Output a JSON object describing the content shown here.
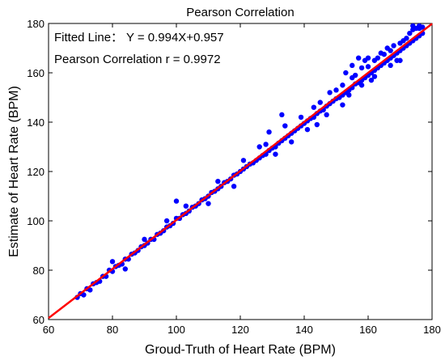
{
  "chart_data": {
    "type": "scatter",
    "title": "Pearson Correlation",
    "xlabel": "Groud-Truth of Heart Rate (BPM)",
    "ylabel": "Estimate of Heart Rate (BPM)",
    "xlim": [
      60,
      180
    ],
    "ylim": [
      60,
      180
    ],
    "xticks": [
      60,
      80,
      100,
      120,
      140,
      160,
      180
    ],
    "yticks": [
      60,
      80,
      100,
      120,
      140,
      160,
      180
    ],
    "grid": false,
    "annotations": [
      "Fitted Line： Y = 0.994X+0.957",
      "Pearson Correlation r = 0.9972"
    ],
    "fit_line": {
      "slope": 0.994,
      "intercept": 0.957,
      "color": "#ff0000"
    },
    "point_color": "#0000ff",
    "points": [
      [
        69,
        69
      ],
      [
        70,
        70.5
      ],
      [
        71,
        70
      ],
      [
        72,
        72.5
      ],
      [
        73,
        72
      ],
      [
        74,
        74.5
      ],
      [
        75,
        75
      ],
      [
        76,
        75.5
      ],
      [
        77,
        77.5
      ],
      [
        78,
        77.5
      ],
      [
        79,
        80
      ],
      [
        80,
        79.5
      ],
      [
        81,
        81.5
      ],
      [
        82,
        82
      ],
      [
        83,
        82.5
      ],
      [
        84,
        84.5
      ],
      [
        85,
        84.5
      ],
      [
        86,
        86.5
      ],
      [
        87,
        87
      ],
      [
        88,
        88
      ],
      [
        89,
        89.5
      ],
      [
        90,
        90
      ],
      [
        91,
        91
      ],
      [
        92,
        92.5
      ],
      [
        93,
        92.5
      ],
      [
        94,
        94.5
      ],
      [
        95,
        95
      ],
      [
        96,
        96
      ],
      [
        97,
        97.5
      ],
      [
        98,
        98
      ],
      [
        99,
        99
      ],
      [
        100,
        101
      ],
      [
        101,
        101
      ],
      [
        102,
        102.5
      ],
      [
        103,
        103
      ],
      [
        104,
        104
      ],
      [
        105,
        105.5
      ],
      [
        106,
        106
      ],
      [
        107,
        107
      ],
      [
        108,
        108.5
      ],
      [
        109,
        109
      ],
      [
        110,
        110
      ],
      [
        111,
        111.5
      ],
      [
        112,
        112
      ],
      [
        113,
        113
      ],
      [
        114,
        114
      ],
      [
        115,
        115.5
      ],
      [
        116,
        116
      ],
      [
        117,
        117
      ],
      [
        118,
        118.5
      ],
      [
        119,
        119
      ],
      [
        120,
        120
      ],
      [
        121,
        121
      ],
      [
        122,
        122
      ],
      [
        123,
        123
      ],
      [
        124,
        123.5
      ],
      [
        125,
        124.5
      ],
      [
        126,
        125.5
      ],
      [
        127,
        126.5
      ],
      [
        128,
        127
      ],
      [
        129,
        128.5
      ],
      [
        130,
        129.5
      ],
      [
        131,
        130
      ],
      [
        132,
        131.5
      ],
      [
        133,
        132.5
      ],
      [
        134,
        133.5
      ],
      [
        135,
        134.5
      ],
      [
        136,
        135.5
      ],
      [
        137,
        136.5
      ],
      [
        138,
        137.5
      ],
      [
        139,
        138.5
      ],
      [
        140,
        139.5
      ],
      [
        141,
        140.5
      ],
      [
        142,
        141.5
      ],
      [
        143,
        142
      ],
      [
        144,
        143.5
      ],
      [
        145,
        144.5
      ],
      [
        146,
        145
      ],
      [
        147,
        146.5
      ],
      [
        148,
        147.5
      ],
      [
        149,
        148.5
      ],
      [
        150,
        149.5
      ],
      [
        151,
        150
      ],
      [
        152,
        151
      ],
      [
        153,
        152
      ],
      [
        154,
        153
      ],
      [
        155,
        154
      ],
      [
        156,
        155.5
      ],
      [
        157,
        156
      ],
      [
        158,
        157
      ],
      [
        159,
        158
      ],
      [
        160,
        159
      ],
      [
        161,
        160
      ],
      [
        162,
        161
      ],
      [
        163,
        162
      ],
      [
        164,
        163
      ],
      [
        165,
        164
      ],
      [
        166,
        165
      ],
      [
        167,
        166
      ],
      [
        168,
        167
      ],
      [
        169,
        168
      ],
      [
        170,
        169
      ],
      [
        171,
        170
      ],
      [
        172,
        171
      ],
      [
        173,
        172
      ],
      [
        174,
        173
      ],
      [
        175,
        174
      ],
      [
        176,
        175
      ],
      [
        177,
        176
      ],
      [
        80,
        83.5
      ],
      [
        84,
        80.5
      ],
      [
        90,
        92.5
      ],
      [
        97,
        100
      ],
      [
        100,
        108
      ],
      [
        103,
        106
      ],
      [
        110,
        107
      ],
      [
        113,
        116
      ],
      [
        118,
        114
      ],
      [
        121,
        124.5
      ],
      [
        126,
        130
      ],
      [
        128,
        131
      ],
      [
        131,
        127
      ],
      [
        134,
        138.5
      ],
      [
        136,
        132
      ],
      [
        141,
        137
      ],
      [
        143,
        146
      ],
      [
        145,
        148
      ],
      [
        147,
        143
      ],
      [
        150,
        153
      ],
      [
        152,
        155
      ],
      [
        154,
        151
      ],
      [
        156,
        159
      ],
      [
        158,
        155
      ],
      [
        160,
        162.5
      ],
      [
        162,
        158.5
      ],
      [
        163,
        166
      ],
      [
        165,
        167.5
      ],
      [
        167,
        163
      ],
      [
        170,
        165
      ],
      [
        172,
        174
      ],
      [
        174,
        177.5
      ],
      [
        175,
        178
      ],
      [
        176,
        178
      ],
      [
        176,
        179
      ],
      [
        177,
        178.5
      ],
      [
        174,
        179
      ],
      [
        173,
        176
      ],
      [
        170,
        172
      ],
      [
        168,
        171
      ],
      [
        129,
        136
      ],
      [
        133,
        143
      ],
      [
        139,
        142
      ],
      [
        144,
        139
      ],
      [
        148,
        152
      ],
      [
        152,
        147
      ],
      [
        155,
        158
      ],
      [
        158,
        162
      ],
      [
        161,
        157
      ],
      [
        164,
        168
      ],
      [
        157,
        166
      ],
      [
        159,
        165
      ],
      [
        160,
        166
      ],
      [
        155,
        163
      ],
      [
        153,
        160
      ],
      [
        162,
        165
      ],
      [
        166,
        170
      ],
      [
        171,
        173
      ],
      [
        169,
        165
      ],
      [
        167,
        169
      ]
    ]
  }
}
